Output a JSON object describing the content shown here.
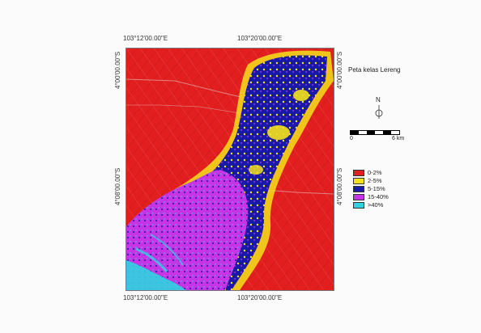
{
  "map": {
    "title": "Peta kelas Lereng",
    "coords": {
      "top_left": "103°12'00.00\"E",
      "top_right": "103°20'00.00\"E",
      "bottom_left": "103°12'00.00\"E",
      "bottom_right": "103°20'00.00\"E",
      "left_top": "4°00'00.00\"S",
      "left_bottom": "4°08'00.00\"S",
      "right_top": "4°00'00.00\"S",
      "right_bottom": "4°08'00.00\"S"
    },
    "north_label": "N",
    "scale": {
      "start": "0",
      "end": "6 km"
    },
    "legend": [
      {
        "label": "0-2%",
        "color": "#e21e1e"
      },
      {
        "label": "2-5%",
        "color": "#f3e21b"
      },
      {
        "label": "5-15%",
        "color": "#1a1aa8"
      },
      {
        "label": "15-40%",
        "color": "#c634e6"
      },
      {
        "label": ">40%",
        "color": "#2fd3e0"
      }
    ]
  }
}
